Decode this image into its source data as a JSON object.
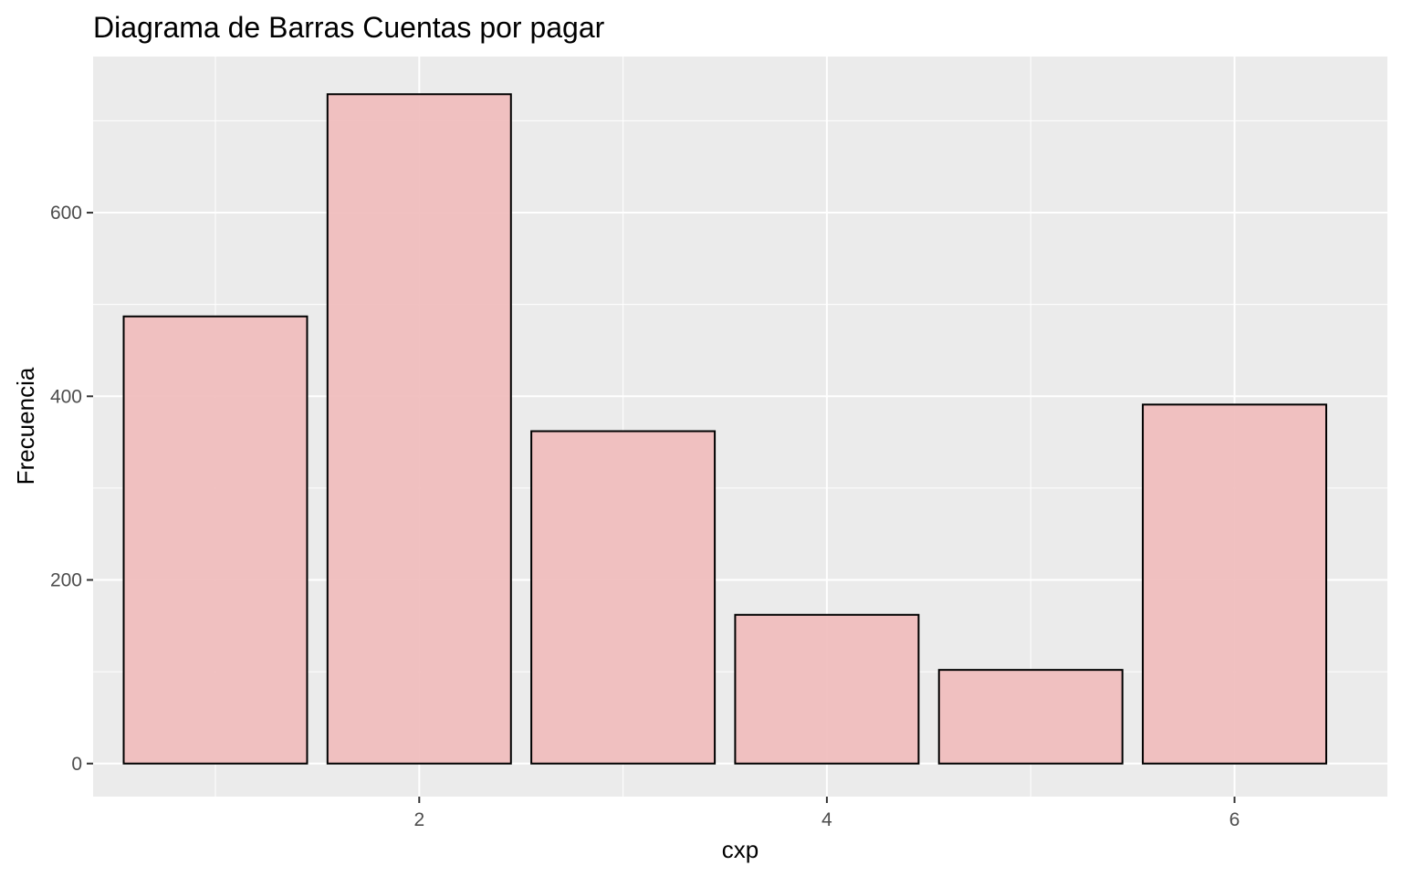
{
  "chart_data": {
    "type": "bar",
    "title": "Diagrama de Barras Cuentas por pagar",
    "xlabel": "cxp",
    "ylabel": "Frecuencia",
    "x": [
      1,
      2,
      3,
      4,
      5,
      6
    ],
    "values": [
      487,
      729,
      362,
      162,
      102,
      391
    ],
    "xlim": [
      0.4,
      6.75
    ],
    "ylim": [
      -36,
      770
    ],
    "x_ticks": [
      2,
      4,
      6
    ],
    "x_tick_labels": [
      "2",
      "4",
      "6"
    ],
    "y_ticks": [
      0,
      200,
      400,
      600
    ],
    "y_tick_labels": [
      "0",
      "200",
      "400",
      "600"
    ],
    "grid": true,
    "legend": "none",
    "colors": {
      "panel_background": "#ebebeb",
      "grid_major": "#ffffff",
      "bar_fill": "#f0bcbc",
      "bar_outline": "#000000",
      "tick_label": "#4d4d4d",
      "tick_mark": "#333333"
    }
  }
}
